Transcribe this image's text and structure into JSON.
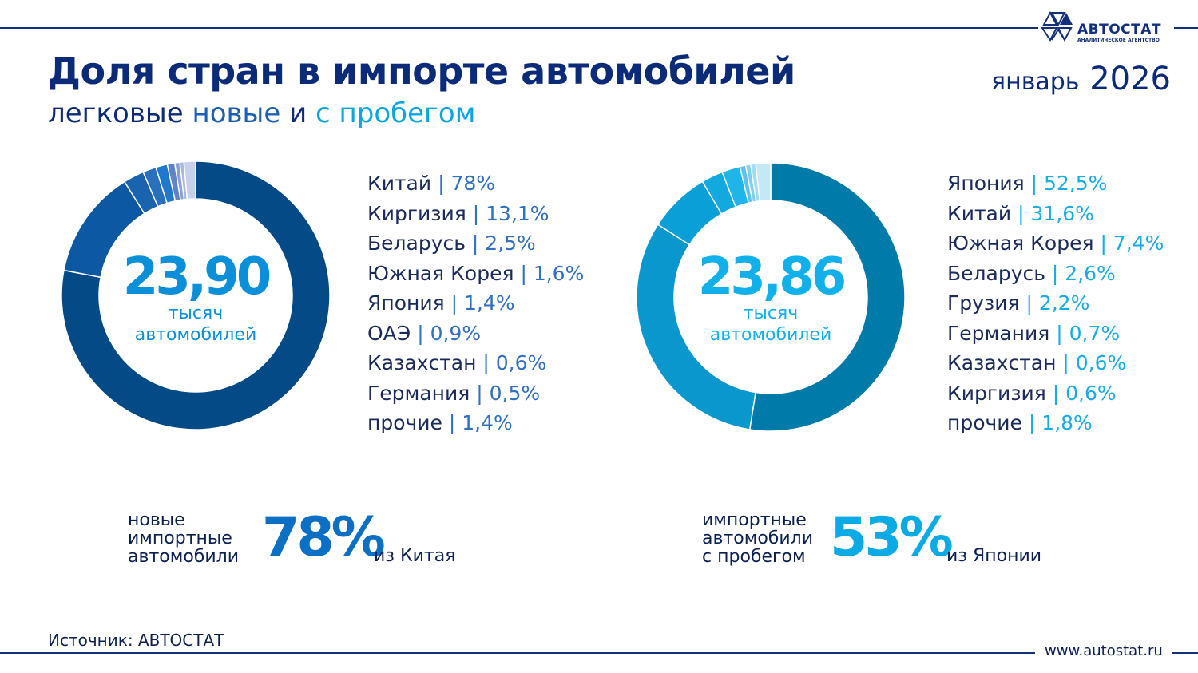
{
  "header": {
    "title": "Доля стран в импорте автомобилей",
    "subtitle_1": "легковые",
    "subtitle_new": "новые",
    "subtitle_and": "и",
    "subtitle_used": "с пробегом",
    "period_month": "январь",
    "period_year": "2026"
  },
  "logo": {
    "name": "АВТОСТАТ",
    "tagline": "АНАЛИТИЧЕСКОЕ АГЕНТСТВО"
  },
  "chart_data": [
    {
      "type": "pie",
      "subtype": "donut",
      "center_value": "23,90",
      "center_label_1": "тысяч",
      "center_label_2": "автомобилей",
      "unit": "%",
      "categories": [
        "Китай",
        "Киргизия",
        "Беларусь",
        "Южная Корея",
        "Япония",
        "ОАЭ",
        "Казахстан",
        "Германия",
        "прочие"
      ],
      "values": [
        78,
        13.1,
        2.5,
        1.6,
        1.4,
        0.9,
        0.6,
        0.5,
        1.4
      ],
      "labels": [
        "78%",
        "13,1%",
        "2,5%",
        "1,6%",
        "1,4%",
        "0,9%",
        "0,6%",
        "0,5%",
        "1,4%"
      ],
      "colors": [
        "#034a86",
        "#0d58a2",
        "#1a63ae",
        "#2a6fbb",
        "#1f78cc",
        "#5f83c4",
        "#8aa0d0",
        "#a8b8de",
        "#c6d0ea"
      ]
    },
    {
      "type": "pie",
      "subtype": "donut",
      "center_value": "23,86",
      "center_label_1": "тысяч",
      "center_label_2": "автомобилей",
      "unit": "%",
      "categories": [
        "Япония",
        "Китай",
        "Южная Корея",
        "Беларусь",
        "Грузия",
        "Германия",
        "Казахстан",
        "Киргизия",
        "прочие"
      ],
      "values": [
        52.5,
        31.6,
        7.4,
        2.6,
        2.2,
        0.7,
        0.6,
        0.6,
        1.8
      ],
      "labels": [
        "52,5%",
        "31,6%",
        "7,4%",
        "2,6%",
        "2,2%",
        "0,7%",
        "0,6%",
        "0,6%",
        "1,8%"
      ],
      "colors": [
        "#007aa8",
        "#0a97cd",
        "#0a9fd6",
        "#12a9df",
        "#1fb5e8",
        "#5cc4ea",
        "#7fd0ee",
        "#a0dcf2",
        "#c5e8f6"
      ]
    }
  ],
  "highlights": [
    {
      "label_1": "новые",
      "label_2": "импортные",
      "label_3": "автомобили",
      "pct": "78%",
      "from": "из Китая",
      "color": "#0b6fc4"
    },
    {
      "label_1": "импортные",
      "label_2": "автомобили",
      "label_3": "с пробегом",
      "pct": "53%",
      "from": "из Японии",
      "color": "#0aaae5"
    }
  ],
  "footer": {
    "source": "Источник: АВТОСТАТ",
    "url": "www.autostat.ru"
  }
}
